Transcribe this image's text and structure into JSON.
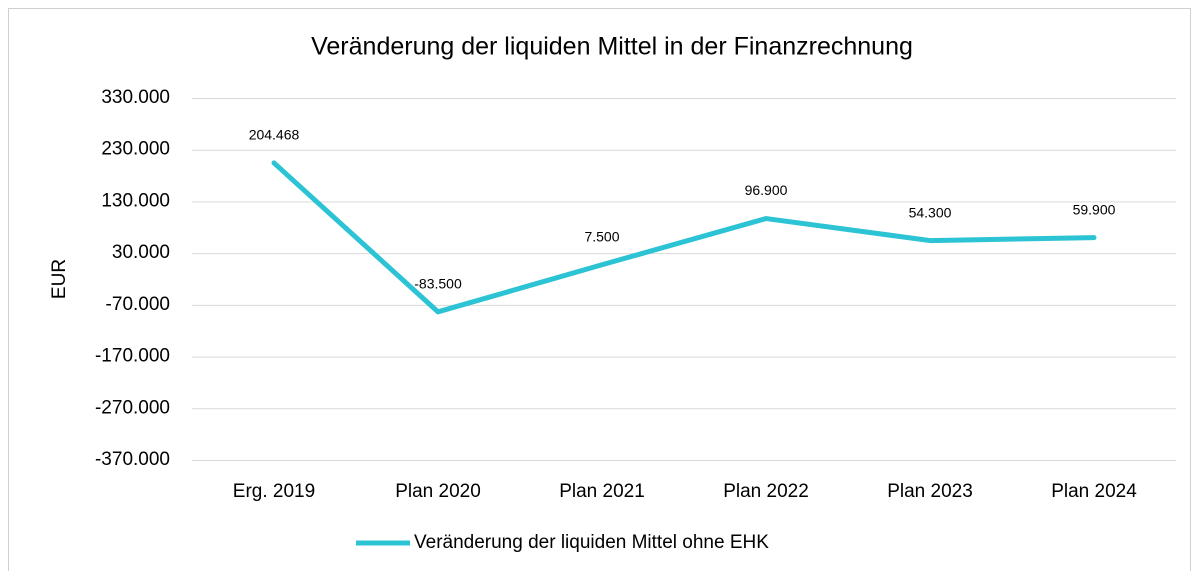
{
  "chart_data": {
    "type": "line",
    "title": "Veränderung der liquiden Mittel in der Finanzrechnung",
    "y_label": "EUR",
    "categories": [
      "Erg. 2019",
      "Plan 2020",
      "Plan 2021",
      "Plan 2022",
      "Plan 2023",
      "Plan 2024"
    ],
    "series": [
      {
        "name": "Veränderung der liquiden Mittel ohne EHK",
        "color": "#2cc3d5",
        "values": [
          204468,
          -83500,
          7500,
          96900,
          54300,
          59900
        ],
        "value_labels": [
          "204.468",
          "-83.500",
          "7.500",
          "96.900",
          "54.300",
          "59.900"
        ]
      }
    ],
    "ylim": [
      -370000,
      330000
    ],
    "yticks": [
      {
        "value": 330000,
        "label": "330.000"
      },
      {
        "value": 230000,
        "label": "230.000"
      },
      {
        "value": 130000,
        "label": "130.000"
      },
      {
        "value": 30000,
        "label": "30.000"
      },
      {
        "value": -70000,
        "label": "-70.000"
      },
      {
        "value": -170000,
        "label": "-170.000"
      },
      {
        "value": -270000,
        "label": "-270.000"
      },
      {
        "value": -370000,
        "label": "-370.000"
      }
    ],
    "grid": true,
    "legend": "bottom"
  }
}
